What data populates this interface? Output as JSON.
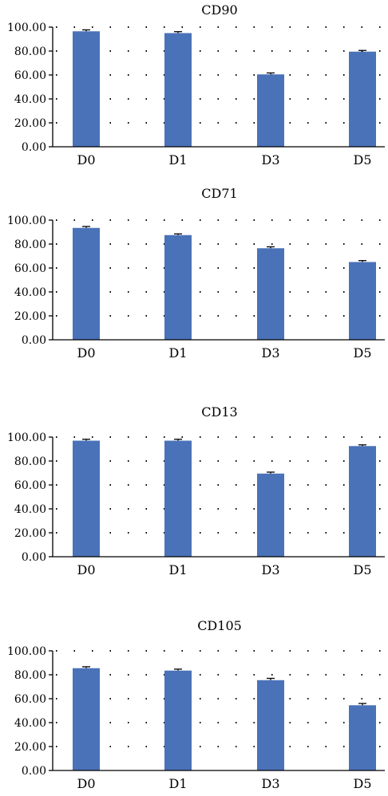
{
  "colors": {
    "bar": "#4a72b8",
    "axis": "#000000",
    "grid": "#000000",
    "error": "#000000"
  },
  "chart_data": [
    {
      "type": "bar",
      "title": "CD90",
      "categories": [
        "D0",
        "D1",
        "D3",
        "D5"
      ],
      "values": [
        96.5,
        95.0,
        60.5,
        79.5
      ],
      "errors": [
        1.2,
        1.2,
        1.2,
        1.0
      ],
      "ylim": [
        0,
        100
      ],
      "yticks": [
        0,
        20,
        40,
        60,
        80,
        100
      ],
      "ytick_labels": [
        "0.00",
        "20.00",
        "40.00",
        "60.00",
        "80.00",
        "100.00"
      ],
      "xlabel": "",
      "ylabel": "",
      "grid": true,
      "legend": "none"
    },
    {
      "type": "bar",
      "title": "CD71",
      "categories": [
        "D0",
        "D1",
        "D3",
        "D5"
      ],
      "values": [
        93.5,
        87.5,
        76.5,
        65.0
      ],
      "errors": [
        1.2,
        1.0,
        1.2,
        1.2
      ],
      "ylim": [
        0,
        100
      ],
      "yticks": [
        0,
        20,
        40,
        60,
        80,
        100
      ],
      "ytick_labels": [
        "0.00",
        "20.00",
        "40.00",
        "60.00",
        "80.00",
        "100.00"
      ],
      "xlabel": "",
      "ylabel": "",
      "grid": true,
      "legend": "none"
    },
    {
      "type": "bar",
      "title": "CD13",
      "categories": [
        "D0",
        "D1",
        "D3",
        "D5"
      ],
      "values": [
        97.0,
        97.0,
        69.5,
        92.5
      ],
      "errors": [
        1.2,
        1.2,
        1.2,
        1.0
      ],
      "ylim": [
        0,
        100
      ],
      "yticks": [
        0,
        20,
        40,
        60,
        80,
        100
      ],
      "ytick_labels": [
        "0.00",
        "20.00",
        "40.00",
        "60.00",
        "80.00",
        "100.00"
      ],
      "xlabel": "",
      "ylabel": "",
      "grid": true,
      "legend": "none"
    },
    {
      "type": "bar",
      "title": "CD105",
      "categories": [
        "D0",
        "D1",
        "D3",
        "D5"
      ],
      "values": [
        85.5,
        83.5,
        75.5,
        54.5
      ],
      "errors": [
        1.2,
        1.2,
        1.5,
        1.5
      ],
      "ylim": [
        0,
        100
      ],
      "yticks": [
        0,
        20,
        40,
        60,
        80,
        100
      ],
      "ytick_labels": [
        "0.00",
        "20.00",
        "40.00",
        "60.00",
        "80.00",
        "100.00"
      ],
      "xlabel": "",
      "ylabel": "",
      "grid": true,
      "legend": "none"
    }
  ]
}
